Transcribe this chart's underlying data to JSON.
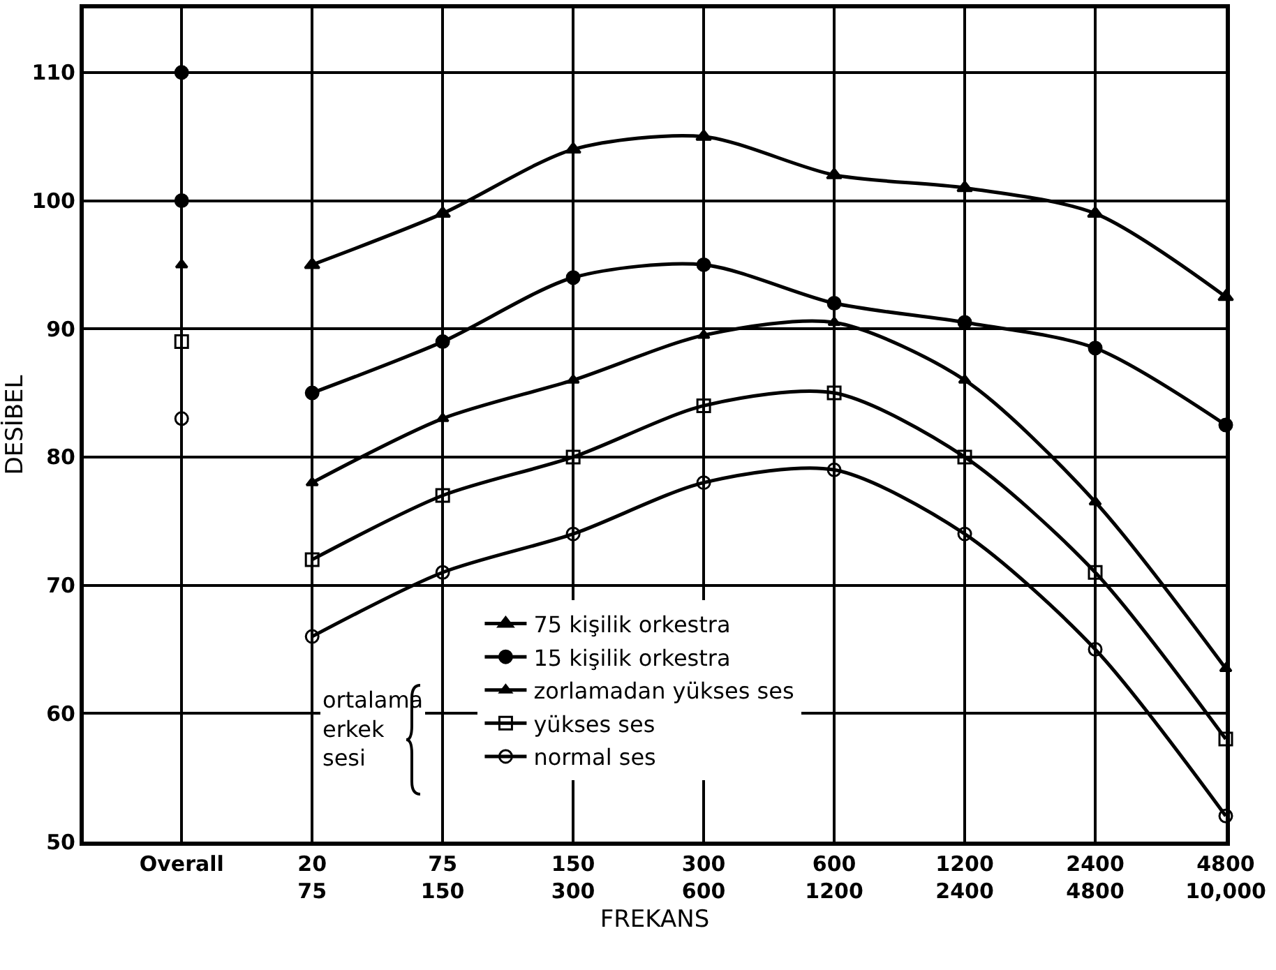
{
  "chart_data": {
    "type": "line",
    "xlabel": "FREKANS",
    "ylabel": "DESİBEL",
    "categories": [
      "Overall",
      "20\n75",
      "75\n150",
      "150\n300",
      "300\n600",
      "600\n1200",
      "1200\n2400",
      "2400\n4800",
      "4800\n10,000"
    ],
    "series": [
      {
        "name": "75 kişilik orkestra",
        "color": "#000000",
        "marker": "triangle",
        "values": [
          null,
          95,
          99,
          104,
          105,
          102,
          101,
          99,
          92.5
        ]
      },
      {
        "name": "15 kişilik orkestra",
        "color": "#000000",
        "marker": "circle",
        "values": [
          null,
          85,
          89,
          94,
          95,
          92,
          90.5,
          88.5,
          82.5
        ]
      },
      {
        "name": "zorlamadan yükses ses",
        "color": "#000000",
        "marker": "triangle",
        "values": [
          null,
          78,
          83,
          86,
          89.5,
          90.5,
          86,
          76.5,
          63.5
        ]
      },
      {
        "name": "yükses ses",
        "color": "#000000",
        "marker": "square",
        "values": [
          null,
          72,
          77,
          80,
          84,
          85,
          80,
          71,
          58
        ]
      },
      {
        "name": "normal ses",
        "color": "#000000",
        "marker": "circle",
        "values": [
          null,
          66,
          71,
          74,
          78,
          79,
          74,
          65,
          52
        ]
      },
      {
        "type": "scatter",
        "color": "#000000",
        "marker": "circle",
        "values": [
          110,
          null,
          null,
          null,
          null,
          null,
          null,
          null,
          null
        ]
      },
      {
        "type": "scatter",
        "color": "#000000",
        "marker": "circle",
        "values": [
          100,
          null,
          null,
          null,
          null,
          null,
          null,
          null,
          null
        ]
      },
      {
        "type": "scatter",
        "color": "#000000",
        "marker": "triangle",
        "values": [
          95,
          null,
          null,
          null,
          null,
          null,
          null,
          null,
          null
        ]
      },
      {
        "type": "scatter",
        "color": "#000000",
        "marker": "square",
        "values": [
          89,
          null,
          null,
          null,
          null,
          null,
          null,
          null,
          null
        ]
      },
      {
        "type": "scatter",
        "color": "#000000",
        "marker": "circle",
        "values": [
          83,
          null,
          null,
          null,
          null,
          null,
          null,
          null,
          null
        ]
      }
    ],
    "annotations": [
      "ortalama\nerkek\nsesi"
    ],
    "ylim": [
      50,
      115
    ],
    "yticks": [
      50,
      60,
      70,
      80,
      90,
      100,
      110
    ],
    "grid": true,
    "legend": "bottom",
    "line_style": "solid"
  }
}
